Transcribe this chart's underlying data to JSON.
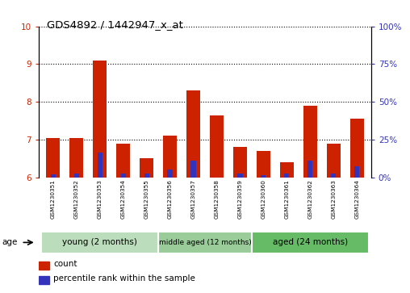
{
  "title": "GDS4892 / 1442947_x_at",
  "samples": [
    "GSM1230351",
    "GSM1230352",
    "GSM1230353",
    "GSM1230354",
    "GSM1230355",
    "GSM1230356",
    "GSM1230357",
    "GSM1230358",
    "GSM1230359",
    "GSM1230360",
    "GSM1230361",
    "GSM1230362",
    "GSM1230363",
    "GSM1230364"
  ],
  "red_values": [
    7.05,
    7.05,
    9.1,
    6.9,
    6.5,
    7.1,
    8.3,
    7.65,
    6.8,
    6.7,
    6.4,
    7.9,
    6.9,
    7.55
  ],
  "blue_values": [
    6.07,
    6.1,
    6.65,
    6.1,
    6.1,
    6.2,
    6.45,
    6.0,
    6.1,
    6.05,
    6.1,
    6.45,
    6.1,
    6.3
  ],
  "ylim_left": [
    6,
    10
  ],
  "ylim_right": [
    0,
    100
  ],
  "yticks_left": [
    6,
    7,
    8,
    9,
    10
  ],
  "yticks_right": [
    0,
    25,
    50,
    75,
    100
  ],
  "bar_width": 0.6,
  "red_color": "#CC2200",
  "blue_color": "#3333BB",
  "group_labels": [
    "young (2 months)",
    "middle aged (12 months)",
    "aged (24 months)"
  ],
  "group_ranges": [
    [
      0,
      4
    ],
    [
      5,
      8
    ],
    [
      9,
      13
    ]
  ],
  "group_colors_light": [
    "#BBDDBB",
    "#99CC99",
    "#66BB66"
  ],
  "age_label": "age",
  "legend_red": "count",
  "legend_blue": "percentile rank within the sample",
  "bg_color": "#FFFFFF",
  "plot_bg": "#FFFFFF",
  "tick_color_left": "#CC2200",
  "tick_color_right": "#3333BB",
  "grid_color": "#000000",
  "xlabel_area_color": "#CCCCCC"
}
